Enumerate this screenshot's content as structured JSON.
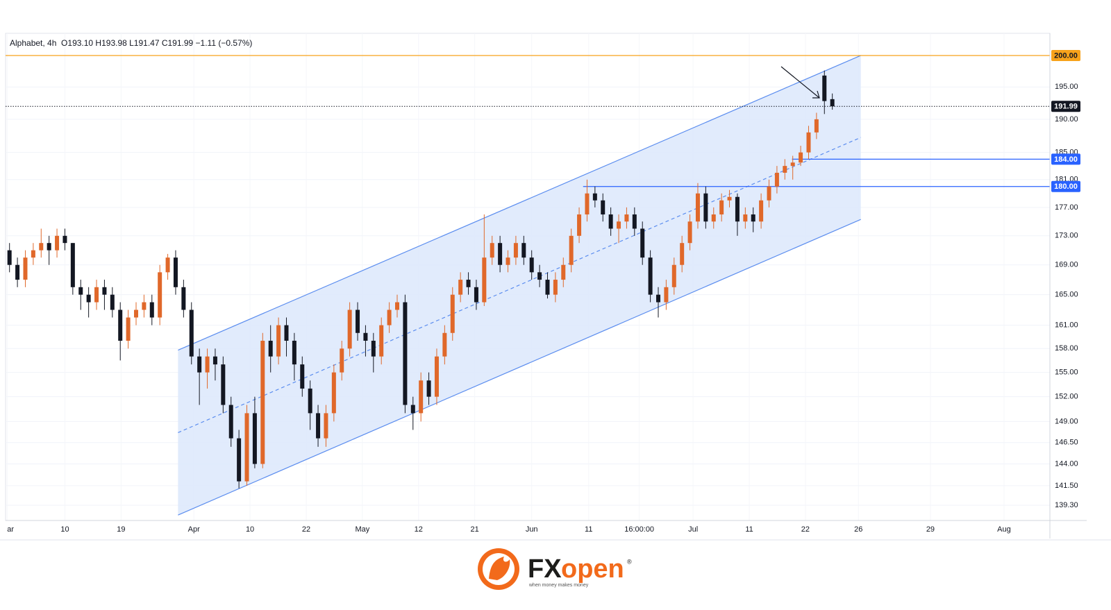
{
  "chart_data": {
    "type": "candlestick",
    "header": "Alphabet, 4h  O193.10 H193.98 L191.47 C191.99 −1.11 (−0.57%)",
    "up_color": "#e0682a",
    "down_color": "#131722",
    "log_scale": true,
    "grid": true,
    "xlim": [
      -0.5,
      131.5
    ],
    "ylim": [
      137.6,
      203.6
    ],
    "yticks": [
      {
        "value": 200,
        "label": "200.00"
      },
      {
        "value": 195,
        "label": "195.00"
      },
      {
        "value": 190,
        "label": "190.00"
      },
      {
        "value": 185,
        "label": "185.00"
      },
      {
        "value": 181,
        "label": "181.00"
      },
      {
        "value": 177,
        "label": "177.00"
      },
      {
        "value": 173,
        "label": "173.00"
      },
      {
        "value": 169,
        "label": "169.00"
      },
      {
        "value": 165,
        "label": "165.00"
      },
      {
        "value": 161,
        "label": "161.00"
      },
      {
        "value": 158,
        "label": "158.00"
      },
      {
        "value": 155,
        "label": "155.00"
      },
      {
        "value": 152,
        "label": "152.00"
      },
      {
        "value": 149,
        "label": "149.00"
      },
      {
        "value": 146.5,
        "label": "146.50"
      },
      {
        "value": 144,
        "label": "144.00"
      },
      {
        "value": 141.5,
        "label": "141.50"
      },
      {
        "value": 139.3,
        "label": "139.30"
      }
    ],
    "xticks": [
      {
        "value": -0.3,
        "label": "ar"
      },
      {
        "value": 7.0,
        "label": "10"
      },
      {
        "value": 14.1,
        "label": "19"
      },
      {
        "value": 23.3,
        "label": "Apr"
      },
      {
        "value": 30.4,
        "label": "10"
      },
      {
        "value": 37.5,
        "label": "22"
      },
      {
        "value": 44.6,
        "label": "May"
      },
      {
        "value": 51.7,
        "label": "12"
      },
      {
        "value": 58.8,
        "label": "21"
      },
      {
        "value": 66.0,
        "label": "Jun"
      },
      {
        "value": 73.2,
        "label": "11"
      },
      {
        "value": 79.6,
        "label": "16:00:00"
      },
      {
        "value": 86.4,
        "label": "Jul"
      },
      {
        "value": 93.5,
        "label": "11"
      },
      {
        "value": 100.6,
        "label": "22"
      },
      {
        "value": 107.3,
        "label": "26"
      },
      {
        "value": 116.4,
        "label": "29"
      },
      {
        "value": 125.7,
        "label": "Aug"
      }
    ],
    "x": [
      0,
      1,
      2,
      3,
      4,
      5,
      6,
      7,
      8,
      9,
      10,
      11,
      12,
      13,
      14,
      15,
      16,
      17,
      18,
      19,
      20,
      21,
      22,
      23,
      24,
      25,
      26,
      27,
      28,
      29,
      30,
      31,
      32,
      33,
      34,
      35,
      36,
      37,
      38,
      39,
      40,
      41,
      42,
      43,
      44,
      45,
      46,
      47,
      48,
      49,
      50,
      51,
      52,
      53,
      54,
      55,
      56,
      57,
      58,
      59,
      60,
      61,
      62,
      63,
      64,
      65,
      66,
      67,
      68,
      69,
      70,
      71,
      72,
      73,
      74,
      75,
      76,
      77,
      78,
      79,
      80,
      81,
      82,
      83,
      84,
      85,
      86,
      87,
      88,
      89,
      90,
      91,
      92,
      93,
      94,
      95,
      96,
      97,
      98,
      99,
      100,
      101,
      102,
      103,
      104
    ],
    "open": [
      171,
      169,
      167,
      170,
      171,
      172,
      171,
      173,
      172,
      166,
      165,
      164,
      166,
      165,
      163,
      159,
      162,
      163,
      164,
      162,
      168,
      170,
      166,
      163,
      157,
      155,
      157,
      156,
      151,
      147,
      142,
      150,
      144,
      159,
      157,
      161,
      159,
      156,
      153,
      150,
      147,
      150,
      155,
      158,
      163,
      160,
      159,
      157,
      161,
      163,
      164,
      151,
      150,
      154,
      152,
      157,
      160,
      165,
      167,
      166,
      164,
      170,
      172,
      169,
      170,
      172,
      170,
      168,
      167,
      165,
      167,
      169,
      173,
      176,
      179,
      178,
      176,
      174,
      175,
      176,
      174,
      170,
      165,
      164,
      166,
      169,
      172,
      175,
      179,
      175,
      176,
      178,
      178.5,
      175,
      176,
      175,
      178,
      180,
      182,
      183,
      183.5,
      185,
      188,
      196.8,
      193.1
    ],
    "high": [
      172,
      170,
      171,
      172,
      174,
      173,
      174,
      174,
      172,
      167,
      166,
      167,
      167,
      166,
      164,
      163,
      164,
      165,
      165,
      169,
      170.5,
      171,
      167,
      164,
      158,
      158,
      158,
      157,
      152,
      148,
      151,
      152,
      160,
      161,
      162,
      162,
      160,
      157,
      154,
      151,
      151,
      156,
      159,
      164,
      164,
      161,
      160,
      162,
      164,
      165,
      165,
      152,
      155,
      155,
      158,
      161,
      166,
      168,
      168,
      167,
      176,
      173,
      173,
      171,
      173,
      173,
      171,
      169,
      168,
      168,
      170,
      174,
      177,
      181,
      180,
      179,
      177,
      176,
      177,
      177,
      175,
      171,
      166,
      167,
      170,
      173,
      176,
      180.5,
      180,
      177,
      179,
      179.5,
      179,
      177,
      177,
      179,
      181,
      183,
      184,
      184.5,
      186,
      189,
      191,
      197.6,
      193.98
    ],
    "low": [
      168,
      166,
      166,
      169,
      170,
      169,
      170,
      171,
      165,
      163,
      162,
      163,
      163,
      162,
      156.5,
      158,
      161,
      162,
      161,
      161,
      167,
      165,
      162,
      156,
      151,
      153,
      154,
      150,
      146,
      141.2,
      141.5,
      143.5,
      143.5,
      155,
      156,
      157,
      154,
      152,
      148,
      146,
      146,
      149,
      154,
      157,
      159,
      157,
      155,
      156,
      160,
      162,
      150,
      148,
      149,
      151,
      151,
      156,
      159,
      164,
      165,
      163,
      163.5,
      169,
      168,
      168,
      169,
      169,
      167,
      166,
      164.5,
      164,
      166,
      168,
      172,
      175,
      177,
      175,
      173,
      172,
      174,
      173,
      169,
      164,
      162,
      163,
      165,
      168,
      171,
      174,
      174,
      174,
      175,
      177,
      173,
      174,
      173.5,
      174,
      177,
      179,
      181,
      181,
      183,
      184,
      187,
      190.8,
      191.47
    ],
    "close": [
      169,
      167,
      170,
      171,
      172,
      171,
      173,
      172,
      166,
      165,
      164,
      166,
      165,
      163,
      159,
      162,
      163,
      164,
      162,
      168,
      170,
      166,
      163,
      157,
      155,
      157,
      156,
      151,
      147,
      142,
      150,
      144,
      159,
      157,
      161,
      159,
      156,
      153,
      150,
      147,
      150,
      155,
      158,
      163,
      160,
      159,
      157,
      161,
      163,
      164,
      151,
      150,
      154,
      152,
      157,
      160,
      165,
      167,
      166,
      164,
      170,
      172,
      169,
      170,
      172,
      170,
      168,
      167,
      165,
      167,
      169,
      173,
      176,
      179,
      178,
      176,
      174,
      175,
      176,
      174,
      170,
      165,
      164,
      166,
      169,
      172,
      175,
      179,
      175,
      176,
      178,
      178.5,
      175,
      176,
      175,
      178,
      180,
      182,
      183,
      183.5,
      185,
      188,
      190,
      192.8,
      191.99
    ],
    "channel": {
      "color": "#5b8def",
      "fill": "#dce8fb",
      "start_x": 21.3,
      "end_x": 107.6,
      "upper": [
        157.8,
        200
      ],
      "lower": [
        138.2,
        175.3
      ]
    },
    "price_lines": [
      {
        "value": 200,
        "label": "200.00",
        "color": "#f7a21b",
        "text_color": "#131722",
        "style": "solid",
        "start_x": -0.5
      },
      {
        "value": 191.99,
        "label": "191.99",
        "color": "#131722",
        "text_color": "#ffffff",
        "style": "dotted",
        "start_x": -0.5
      },
      {
        "value": 184,
        "label": "184.00",
        "color": "#2962ff",
        "text_color": "#ffffff",
        "style": "solid",
        "start_x": 98.9
      },
      {
        "value": 180,
        "label": "180.00",
        "color": "#2962ff",
        "text_color": "#ffffff",
        "style": "solid",
        "start_x": 72.5
      }
    ]
  },
  "brand": {
    "name_fx": "FX",
    "name_open": "open",
    "registered": "®",
    "tagline": "when money makes money"
  }
}
